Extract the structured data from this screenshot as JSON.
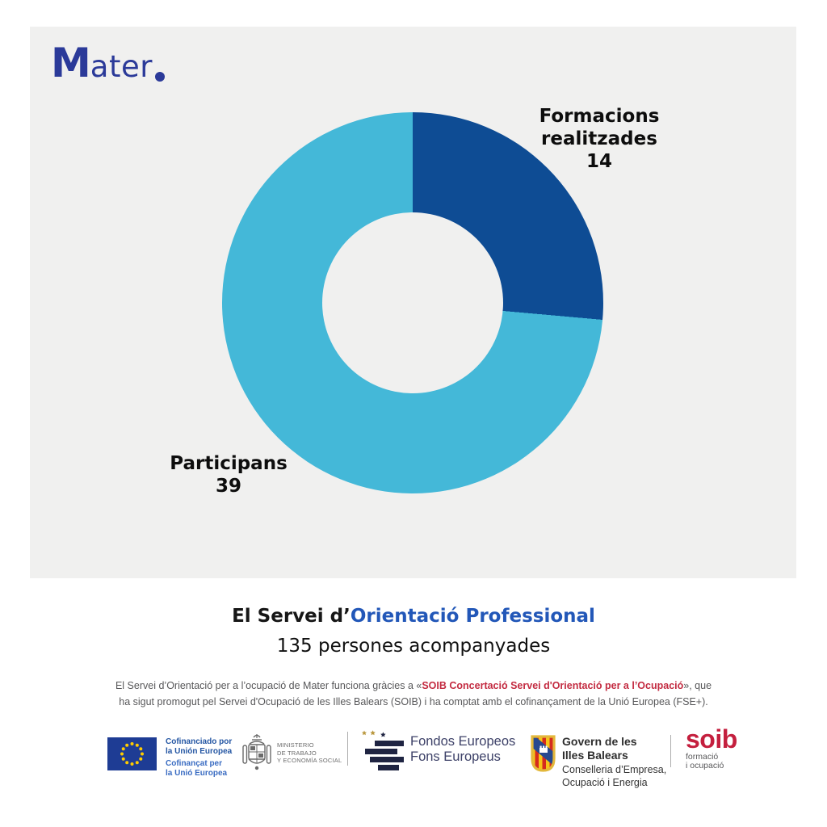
{
  "brand": {
    "initial": "M",
    "rest": "ater",
    "color": "#2B3A99"
  },
  "chart_data": {
    "type": "pie",
    "subtype": "donut",
    "title": "",
    "legend_position": "data-labels",
    "start_angle_deg": 0,
    "direction": "clockwise",
    "donut_hole_ratio": 0.475,
    "background": "#F0F0EF",
    "segments": [
      {
        "label": "Formacions realitzades",
        "value": 14,
        "color": "#0E4C94"
      },
      {
        "label": "Participans",
        "value": 39,
        "color": "#44B8D8"
      }
    ]
  },
  "title": {
    "prefix": "El Servei d’",
    "highlight": "Orientació Professional",
    "subtitle": "135 persones acompanyades"
  },
  "disclaimer": {
    "line1_pre": "El Servei d’Orientació per a l’ocupació de Mater funciona gràcies a «",
    "line1_bold": "SOIB Concertació Servei d'Orientació per a l’Ocupació",
    "line1_post": "», que",
    "line2": "ha sigut promogut pel Servei d'Ocupació de les Illes Balears (SOIB) i ha comptat amb el cofinançament de la Unió Europea (FSE+)."
  },
  "footer": {
    "eu": {
      "line1a": "Cofinanciado por",
      "line1b": "la Unión Europea",
      "line2a": "Cofinançat per",
      "line2b": "la Unió Europea"
    },
    "ministry": {
      "line1": "MINISTERIO",
      "line2": "DE TRABAJO",
      "line3": "Y ECONOMÍA SOCIAL"
    },
    "fondos": {
      "line1": "Fondos Europeos",
      "line2": "Fons Europeus"
    },
    "govern": {
      "line1": "Govern de les",
      "line2": "Illes Balears",
      "line3": "Conselleria d’Empresa,",
      "line4": "Ocupació i Energia"
    },
    "soib": {
      "name": "soib",
      "sub1": "formació",
      "sub2": "i ocupació"
    }
  }
}
